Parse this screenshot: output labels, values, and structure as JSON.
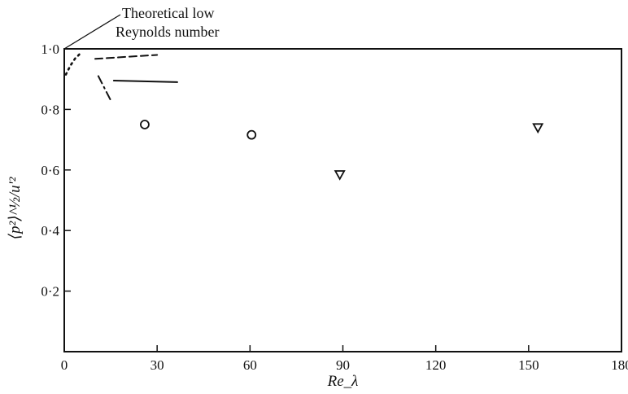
{
  "chart_data": {
    "type": "scatter",
    "title": "",
    "xlabel": "Re_λ",
    "ylabel": "⟨p²⟩^½/u'²",
    "xlim": [
      0,
      180
    ],
    "ylim": [
      0,
      1.0
    ],
    "x_ticks": [
      {
        "value": 0,
        "label": "0"
      },
      {
        "value": 30,
        "label": "30"
      },
      {
        "value": 60,
        "label": "60"
      },
      {
        "value": 90,
        "label": "90"
      },
      {
        "value": 120,
        "label": "120"
      },
      {
        "value": 150,
        "label": "150"
      },
      {
        "value": 180,
        "label": "180"
      }
    ],
    "y_ticks": [
      {
        "value": 0.2,
        "label": "0·2"
      },
      {
        "value": 0.4,
        "label": "0·4"
      },
      {
        "value": 0.6,
        "label": "0·6"
      },
      {
        "value": 0.8,
        "label": "0·8"
      },
      {
        "value": 1.0,
        "label": "1·0"
      }
    ],
    "grid": false,
    "legend": "none",
    "series": [
      {
        "marker": "circle",
        "points": [
          {
            "x": 26,
            "y": 0.75
          },
          {
            "x": 60.5,
            "y": 0.716
          }
        ]
      },
      {
        "marker": "triangle-down",
        "points": [
          {
            "x": 89,
            "y": 0.585
          },
          {
            "x": 153,
            "y": 0.74
          }
        ]
      },
      {
        "style": "dotted",
        "points": [
          {
            "x": 0.5,
            "y": 0.915
          },
          {
            "x": 2,
            "y": 0.945
          },
          {
            "x": 3.5,
            "y": 0.968
          },
          {
            "x": 5,
            "y": 0.983
          }
        ]
      },
      {
        "style": "dashed",
        "points": [
          {
            "x": 10,
            "y": 0.967
          },
          {
            "x": 30,
            "y": 0.98
          }
        ]
      },
      {
        "style": "dash-dot",
        "points": [
          {
            "x": 11,
            "y": 0.91
          },
          {
            "x": 15,
            "y": 0.83
          }
        ]
      },
      {
        "style": "solid",
        "points": [
          {
            "x": 16,
            "y": 0.895
          },
          {
            "x": 36.5,
            "y": 0.89
          }
        ]
      }
    ],
    "annotation": {
      "lines": [
        "Theoretical low",
        "Reynolds number"
      ],
      "points_to": {
        "x": 0,
        "y": 1.0
      }
    }
  }
}
